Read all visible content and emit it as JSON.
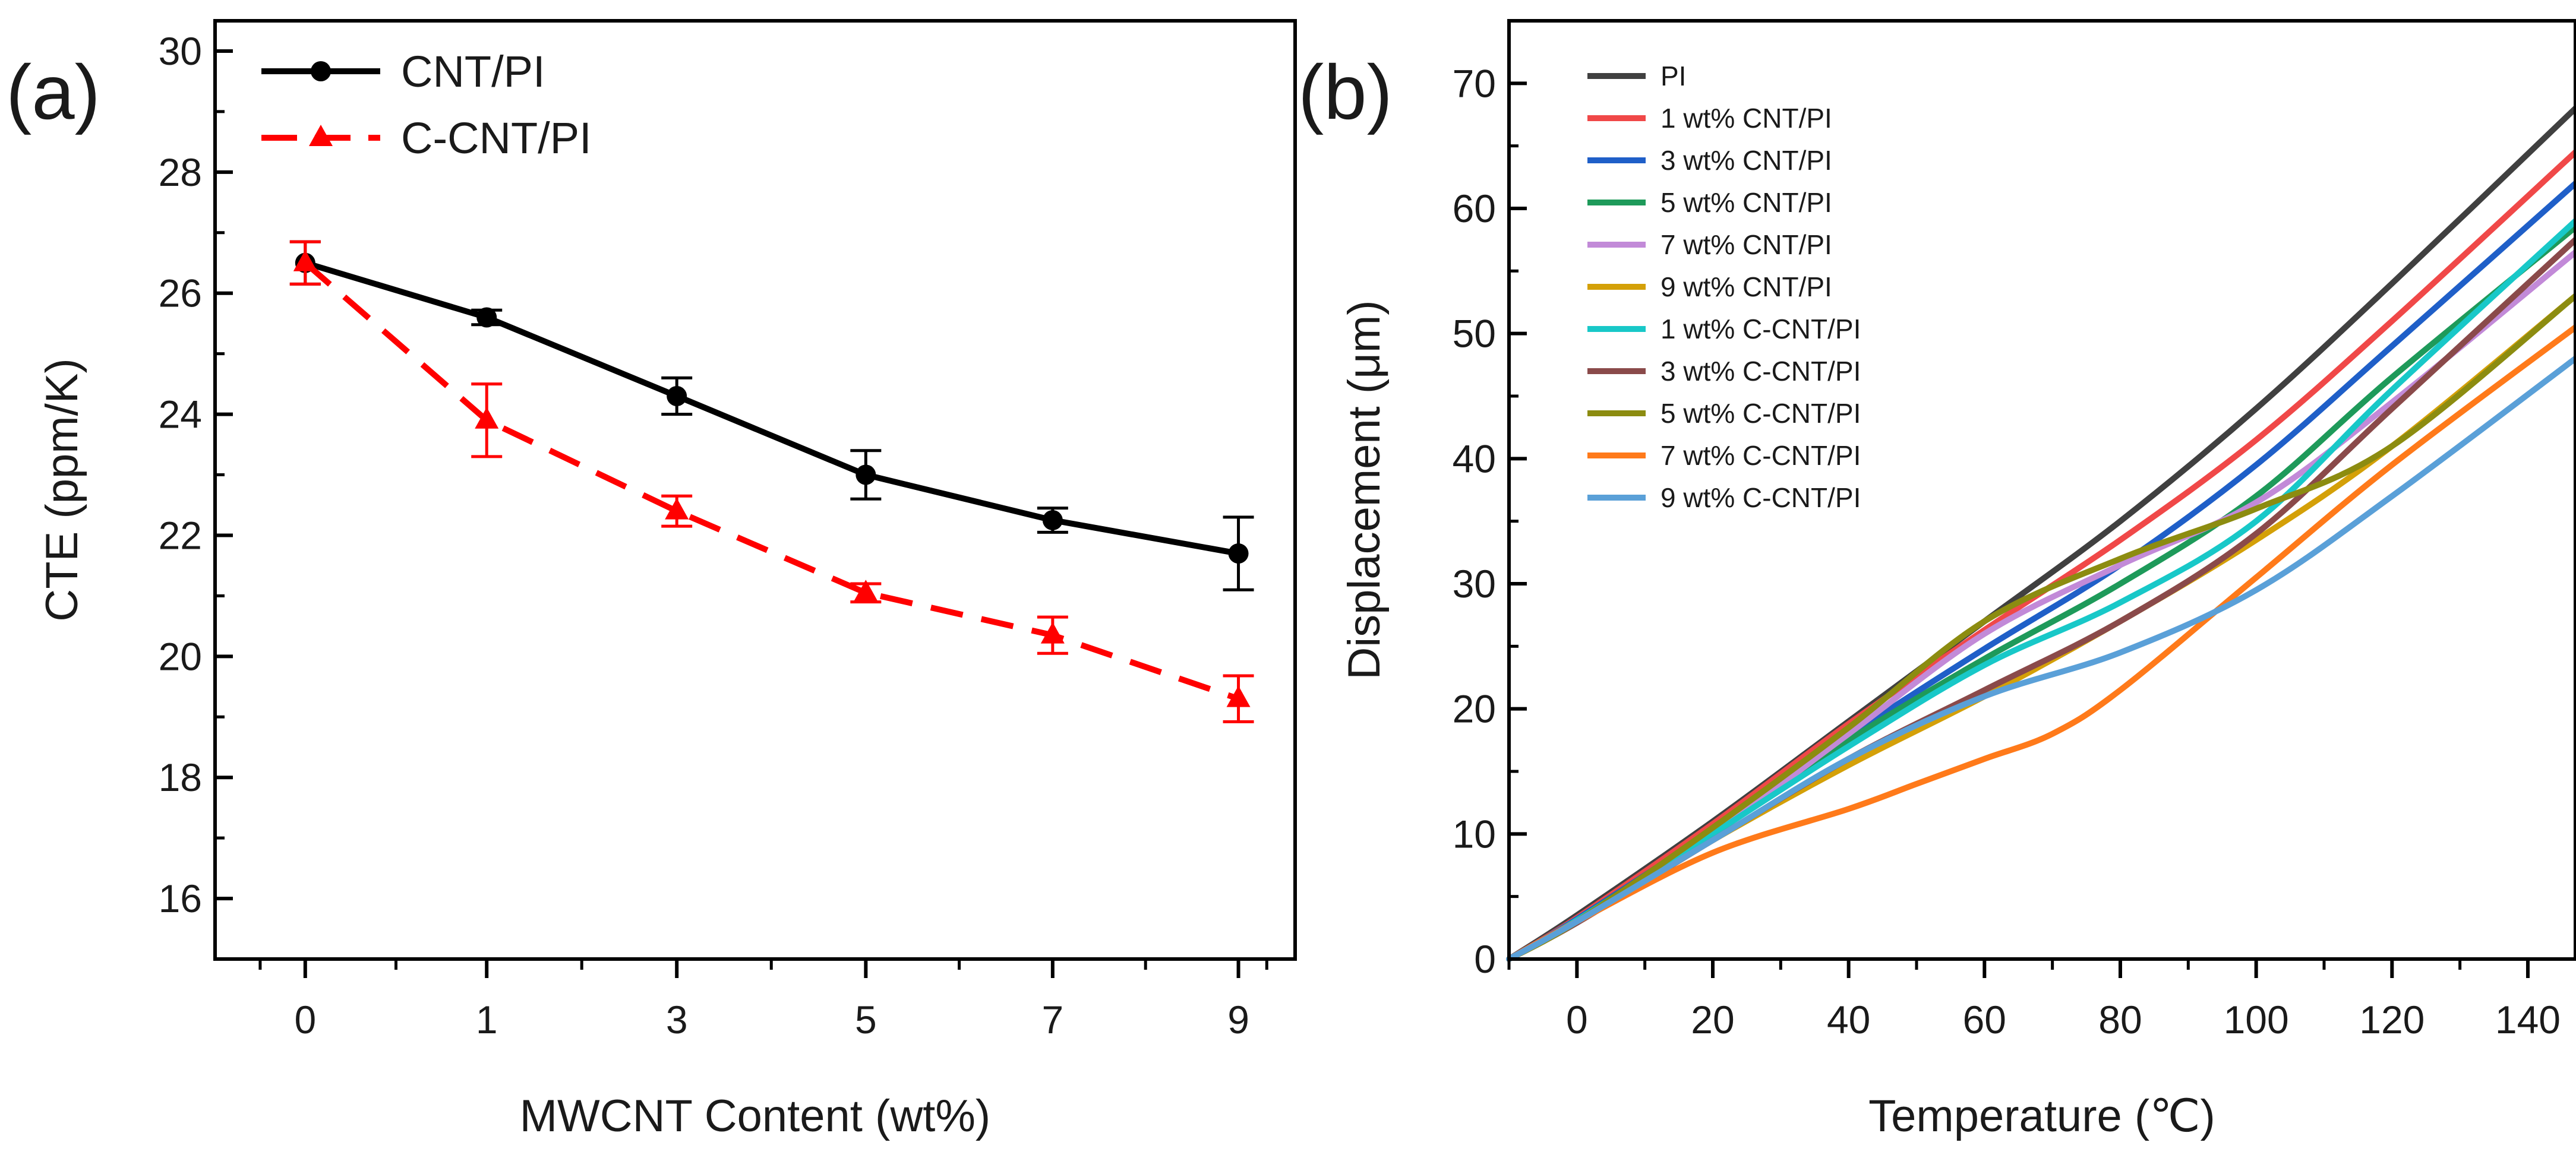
{
  "chart_data": [
    {
      "type": "line",
      "panel_label": "(a)",
      "xlabel": "MWCNT Content (wt%)",
      "ylabel": "CTE (ppm/K)",
      "ylim": [
        15,
        30.5
      ],
      "yticks": [
        16,
        18,
        20,
        22,
        24,
        26,
        28,
        30
      ],
      "categories": [
        "0",
        "1",
        "3",
        "5",
        "7",
        "9"
      ],
      "grid": false,
      "legend_position": "top-left",
      "series": [
        {
          "name": "CNT/PI",
          "color": "#000000",
          "marker": "circle",
          "line_style": "solid",
          "values": [
            26.5,
            25.6,
            24.3,
            23.0,
            22.25,
            21.7
          ],
          "errors": [
            0.35,
            0.12,
            0.3,
            0.4,
            0.2,
            0.6
          ]
        },
        {
          "name": "C-CNT/PI",
          "color": "#ff0000",
          "marker": "triangle",
          "line_style": "dashed",
          "values": [
            26.5,
            23.9,
            22.4,
            21.05,
            20.35,
            19.3
          ],
          "errors": [
            0.35,
            0.6,
            0.25,
            0.15,
            0.3,
            0.38
          ]
        }
      ]
    },
    {
      "type": "line",
      "panel_label": "(b)",
      "xlabel": "Temperature (℃)",
      "ylabel": "Displacement (μm)",
      "xlim": [
        -10,
        147
      ],
      "ylim": [
        0,
        75
      ],
      "xticks": [
        0,
        20,
        40,
        60,
        80,
        100,
        120,
        140
      ],
      "yticks": [
        0,
        10,
        20,
        30,
        40,
        50,
        60,
        70
      ],
      "grid": false,
      "legend_position": "top-left",
      "series": [
        {
          "name": "PI",
          "color": "#404040",
          "x": [
            -10,
            0,
            20,
            40,
            60,
            80,
            100,
            120,
            147
          ],
          "values": [
            0,
            3.5,
            11,
            19,
            27,
            35,
            44,
            54,
            68
          ]
        },
        {
          "name": "1 wt% CNT/PI",
          "color": "#f04848",
          "x": [
            -10,
            0,
            20,
            40,
            60,
            80,
            100,
            120,
            147
          ],
          "values": [
            0,
            3.3,
            10.8,
            18.8,
            26.3,
            33.5,
            41.5,
            51,
            64.5
          ]
        },
        {
          "name": "3 wt% CNT/PI",
          "color": "#1f5fc8",
          "x": [
            -10,
            0,
            20,
            40,
            60,
            80,
            100,
            120,
            147
          ],
          "values": [
            0,
            3.2,
            10.3,
            17.8,
            24.8,
            31.5,
            39.5,
            49,
            62
          ]
        },
        {
          "name": "5 wt% CNT/PI",
          "color": "#1e9a5a",
          "x": [
            -10,
            0,
            20,
            40,
            60,
            80,
            100,
            120,
            147
          ],
          "values": [
            0,
            3.1,
            10.2,
            17.5,
            24,
            30,
            37,
            46.5,
            58.5
          ]
        },
        {
          "name": "7 wt% CNT/PI",
          "color": "#c28ad8",
          "x": [
            -10,
            0,
            20,
            40,
            60,
            80,
            100,
            120,
            147
          ],
          "values": [
            0,
            3.0,
            10,
            18,
            26,
            31.5,
            36.5,
            44.5,
            56.5
          ]
        },
        {
          "name": "9 wt% CNT/PI",
          "color": "#d4a008",
          "x": [
            -10,
            0,
            20,
            40,
            60,
            80,
            100,
            120,
            147
          ],
          "values": [
            0,
            3.0,
            9.5,
            15.5,
            21,
            27,
            33.5,
            41,
            53
          ]
        },
        {
          "name": "1 wt% C-CNT/PI",
          "color": "#18c8c8",
          "x": [
            -10,
            0,
            20,
            40,
            60,
            80,
            100,
            120,
            147
          ],
          "values": [
            0,
            3.1,
            10,
            17,
            23.5,
            28.5,
            35,
            45.5,
            59
          ]
        },
        {
          "name": "3 wt% C-CNT/PI",
          "color": "#8a4a4a",
          "x": [
            -10,
            0,
            20,
            40,
            60,
            80,
            100,
            120,
            147
          ],
          "values": [
            0,
            2.9,
            9.5,
            16,
            21.5,
            27,
            34,
            44,
            57.5
          ]
        },
        {
          "name": "5 wt% C-CNT/PI",
          "color": "#8c8c10",
          "x": [
            -10,
            0,
            20,
            40,
            60,
            80,
            100,
            120,
            147
          ],
          "values": [
            0,
            3.0,
            10.5,
            18.5,
            27,
            32,
            36,
            41,
            53
          ]
        },
        {
          "name": "7 wt% C-CNT/PI",
          "color": "#ff7a1a",
          "x": [
            -10,
            0,
            20,
            40,
            50,
            60,
            70,
            80,
            100,
            120,
            147
          ],
          "values": [
            0,
            3.0,
            8.5,
            12,
            14,
            16,
            18,
            21.5,
            30.5,
            39.5,
            50.5
          ]
        },
        {
          "name": "9 wt% C-CNT/PI",
          "color": "#5aa0d8",
          "x": [
            -10,
            0,
            20,
            40,
            60,
            80,
            100,
            120,
            147
          ],
          "values": [
            0,
            3.0,
            9.5,
            16,
            21,
            24.5,
            29.5,
            37,
            48
          ]
        }
      ]
    }
  ]
}
